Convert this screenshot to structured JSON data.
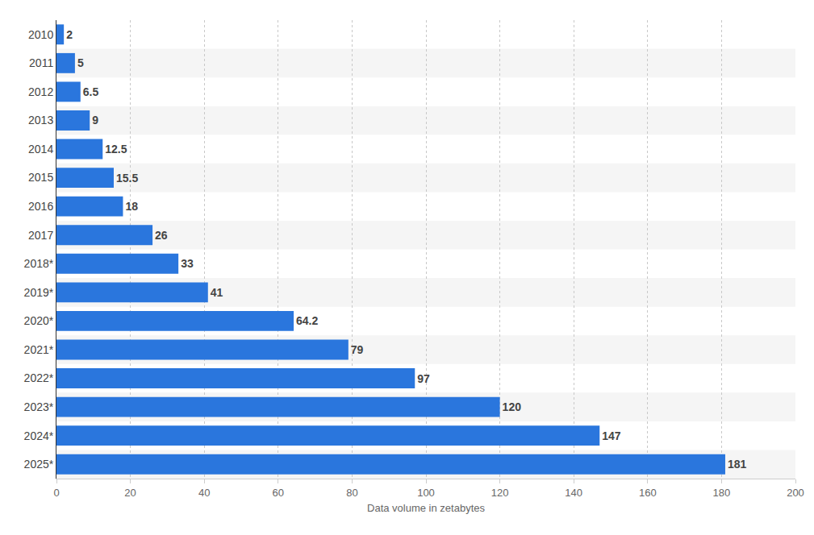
{
  "chart_data": {
    "type": "bar",
    "orientation": "horizontal",
    "categories": [
      "2010",
      "2011",
      "2012",
      "2013",
      "2014",
      "2015",
      "2016",
      "2017",
      "2018*",
      "2019*",
      "2020*",
      "2021*",
      "2022*",
      "2023*",
      "2024*",
      "2025*"
    ],
    "values": [
      2,
      5,
      6.5,
      9,
      12.5,
      15.5,
      18,
      26,
      33,
      41,
      64.2,
      79,
      97,
      120,
      147,
      181
    ],
    "color": "#2a76dd",
    "xlabel": "Data volume in zetabytes",
    "xlim": [
      0,
      200
    ],
    "xticks": [
      0,
      20,
      40,
      60,
      80,
      100,
      120,
      140,
      160,
      180,
      200
    ],
    "grid": true,
    "data_labels": true
  }
}
